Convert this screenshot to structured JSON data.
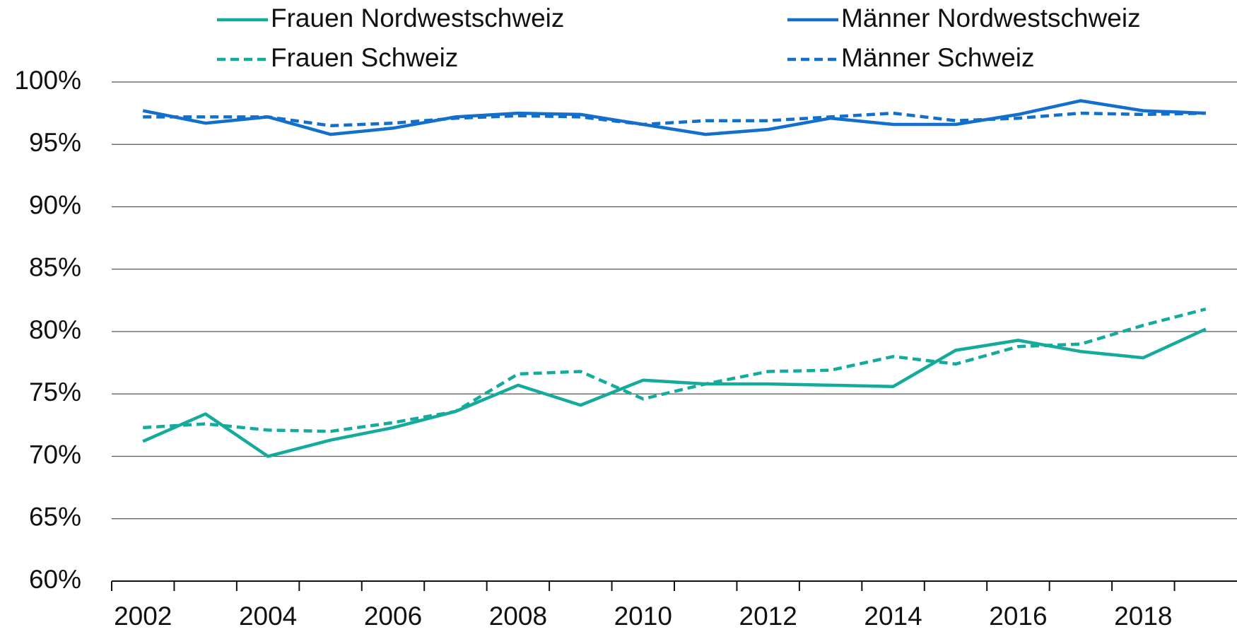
{
  "chart_data": {
    "type": "line",
    "categories": [
      2002,
      null,
      2004,
      null,
      2006,
      null,
      2008,
      null,
      2010,
      null,
      2012,
      null,
      2014,
      null,
      2016,
      null,
      2018,
      null
    ],
    "series": [
      {
        "name": "Frauen Nordwestschweiz",
        "color": "#14ab9c",
        "style": "solid",
        "values": [
          71.2,
          73.4,
          70.0,
          71.3,
          72.3,
          73.6,
          75.7,
          74.1,
          76.1,
          75.8,
          75.8,
          75.7,
          75.6,
          78.5,
          79.3,
          78.4,
          77.9,
          80.2
        ]
      },
      {
        "name": "Männer Nordwestschweiz",
        "color": "#1270cc",
        "style": "solid",
        "values": [
          97.7,
          96.7,
          97.2,
          95.8,
          96.3,
          97.2,
          97.5,
          97.4,
          96.6,
          95.8,
          96.2,
          97.1,
          96.6,
          96.6,
          97.4,
          98.5,
          97.7,
          97.5
        ]
      },
      {
        "name": "Frauen Schweiz",
        "color": "#14ab9c",
        "style": "dashed",
        "values": [
          72.3,
          72.6,
          72.1,
          72.0,
          72.7,
          73.6,
          76.6,
          76.8,
          74.6,
          75.8,
          76.8,
          76.9,
          78.0,
          77.4,
          78.8,
          79.0,
          80.5,
          81.8
        ]
      },
      {
        "name": "Männer Schweiz",
        "color": "#1270cc",
        "style": "dashed",
        "values": [
          97.2,
          97.2,
          97.2,
          96.5,
          96.7,
          97.1,
          97.3,
          97.2,
          96.6,
          96.9,
          96.9,
          97.2,
          97.5,
          96.9,
          97.1,
          97.5,
          97.4,
          97.5
        ]
      }
    ],
    "ylim": [
      60,
      100
    ],
    "yticks": [
      {
        "value": 60,
        "label": "60%"
      },
      {
        "value": 65,
        "label": "65%"
      },
      {
        "value": 70,
        "label": "70%"
      },
      {
        "value": 75,
        "label": "75%"
      },
      {
        "value": 80,
        "label": "80%"
      },
      {
        "value": 85,
        "label": "85%"
      },
      {
        "value": 90,
        "label": "90%"
      },
      {
        "value": 95,
        "label": "95%"
      },
      {
        "value": 100,
        "label": "100%"
      }
    ],
    "grid": true,
    "legend": "top"
  }
}
